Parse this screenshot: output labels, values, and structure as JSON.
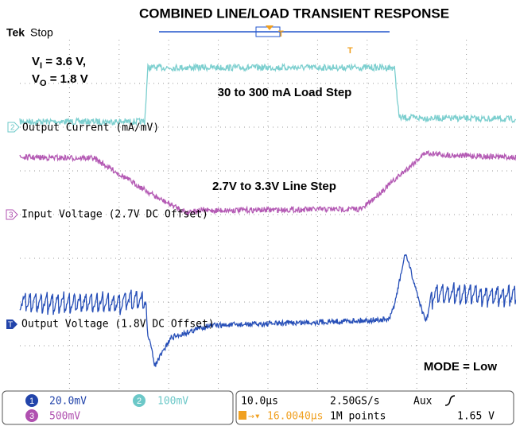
{
  "header": {
    "title": "COMBINED LINE/LOAD TRANSIENT RESPONSE",
    "brand": "Tek",
    "state": "Stop",
    "trigger_mark": "T"
  },
  "annotations": {
    "vi": {
      "base": "V",
      "sub": "I",
      "rest": " = 3.6 V,"
    },
    "vo": {
      "base": "V",
      "sub": "O",
      "rest": " = 1.8 V"
    },
    "load_step": "30 to 300 mA Load Step",
    "line_step": "2.7V to 3.3V Line Step",
    "mode": "MODE = Low"
  },
  "channels": [
    {
      "marker": "2",
      "label": "Output Current (mA/mV)"
    },
    {
      "marker": "3",
      "label": "Input Voltage (2.7V DC Offset)"
    },
    {
      "marker": "T",
      "label": "Output Voltage (1.8V DC Offset)"
    }
  ],
  "status": {
    "ch1": {
      "num": "1",
      "scale": "20.0mV"
    },
    "ch2": {
      "num": "2",
      "scale": "100mV"
    },
    "ch3": {
      "num": "3",
      "scale": "500mV"
    },
    "timebase": "10.0µs",
    "rate": "2.50GS/s",
    "trigger_source": "Aux",
    "delay": "16.0040µs",
    "points": "1M points",
    "trigger_level": "1.65 V"
  }
}
